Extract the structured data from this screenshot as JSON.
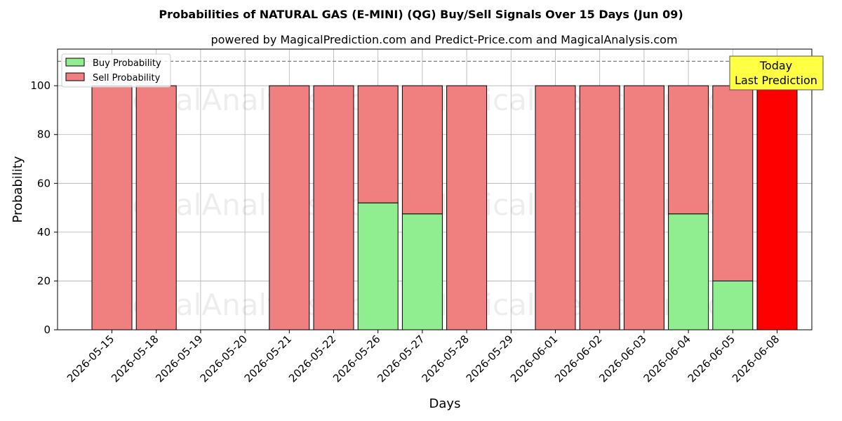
{
  "chart_data": {
    "type": "bar",
    "stacked": true,
    "title": "Probabilities of NATURAL GAS (E-MINI) (QG) Buy/Sell Signals Over 15 Days (Jun 09)",
    "subtitle": "powered by MagicalPrediction.com and Predict-Price.com and MagicalAnalysis.com",
    "xlabel": "Days",
    "ylabel": "Probability",
    "ylim": [
      0,
      115
    ],
    "yticks": [
      0,
      20,
      40,
      60,
      80,
      100
    ],
    "grid": true,
    "legend_placement": "top-left",
    "reference_line": 110,
    "categories": [
      "2026-05-15",
      "2026-05-18",
      "2026-05-19",
      "2026-05-20",
      "2026-05-21",
      "2026-05-22",
      "2026-05-26",
      "2026-05-27",
      "2026-05-28",
      "2026-05-29",
      "2026-06-01",
      "2026-06-02",
      "2026-06-03",
      "2026-06-04",
      "2026-06-05",
      "2026-06-08"
    ],
    "series": [
      {
        "name": "Buy Probability",
        "color": "#90ee90",
        "values": [
          0,
          0,
          null,
          null,
          0,
          0,
          52,
          47.5,
          0,
          null,
          0,
          0,
          0,
          47.5,
          20,
          0
        ]
      },
      {
        "name": "Sell Probability",
        "color": "#f08080",
        "values": [
          100,
          100,
          null,
          null,
          100,
          100,
          48,
          52.5,
          100,
          null,
          100,
          100,
          100,
          52.5,
          80,
          100
        ]
      }
    ],
    "highlight": {
      "category": "2026-06-08",
      "color": "#ff0000"
    },
    "annotation": {
      "lines": [
        "Today",
        "Last Prediction"
      ],
      "box_color": "#ffff44"
    },
    "watermarks": [
      "MagicalAnalysis.com",
      "MagicalPrediction.com"
    ]
  }
}
